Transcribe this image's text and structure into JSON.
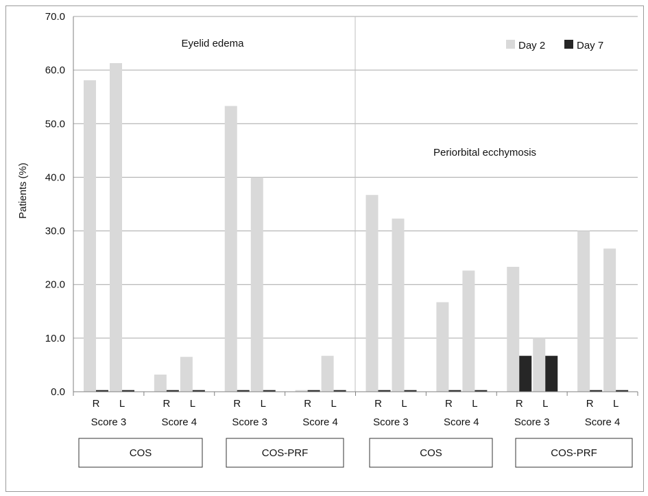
{
  "chart_data": {
    "type": "bar",
    "ylabel": "Patients (%)",
    "ylim": [
      0,
      70
    ],
    "yticks": [
      "0.0",
      "10.0",
      "20.0",
      "30.0",
      "40.0",
      "50.0",
      "60.0",
      "70.0"
    ],
    "grid": true,
    "legend_position": "top-right",
    "panel_titles": [
      "Eyelid edema",
      "Periorbital ecchymosis"
    ],
    "side_labels": [
      "R",
      "L"
    ],
    "score_labels": [
      "Score 3",
      "Score 4",
      "Score 3",
      "Score 4",
      "Score 3",
      "Score 4",
      "Score 3",
      "Score 4"
    ],
    "group_labels": [
      "COS",
      "COS-PRF",
      "COS",
      "COS-PRF"
    ],
    "categories": [
      "Eyelid edema COS Score 3 R",
      "Eyelid edema COS Score 3 L",
      "Eyelid edema COS Score 4 R",
      "Eyelid edema COS Score 4 L",
      "Eyelid edema COS-PRF Score 3 R",
      "Eyelid edema COS-PRF Score 3 L",
      "Eyelid edema COS-PRF Score 4 R",
      "Eyelid edema COS-PRF Score 4 L",
      "Periorbital ecchymosis COS Score 3 R",
      "Periorbital ecchymosis COS Score 3 L",
      "Periorbital ecchymosis COS Score 4 R",
      "Periorbital ecchymosis COS Score 4 L",
      "Periorbital ecchymosis COS-PRF Score 3 R",
      "Periorbital ecchymosis COS-PRF Score 3 L",
      "Periorbital ecchymosis COS-PRF Score 4 R",
      "Periorbital ecchymosis COS-PRF Score 4 L"
    ],
    "series": [
      {
        "name": "Day 2",
        "color": "#d9d9d9",
        "values": [
          58.1,
          61.3,
          3.2,
          6.5,
          53.3,
          40.0,
          0.3,
          6.7,
          36.7,
          32.3,
          16.7,
          22.6,
          23.3,
          10.0,
          30.0,
          26.7
        ]
      },
      {
        "name": "Day 7",
        "color": "#262626",
        "values": [
          0.3,
          0.3,
          0.3,
          0.3,
          0.3,
          0.3,
          0.3,
          0.3,
          0.3,
          0.3,
          0.3,
          0.3,
          6.7,
          6.7,
          0.3,
          0.3
        ]
      }
    ]
  }
}
